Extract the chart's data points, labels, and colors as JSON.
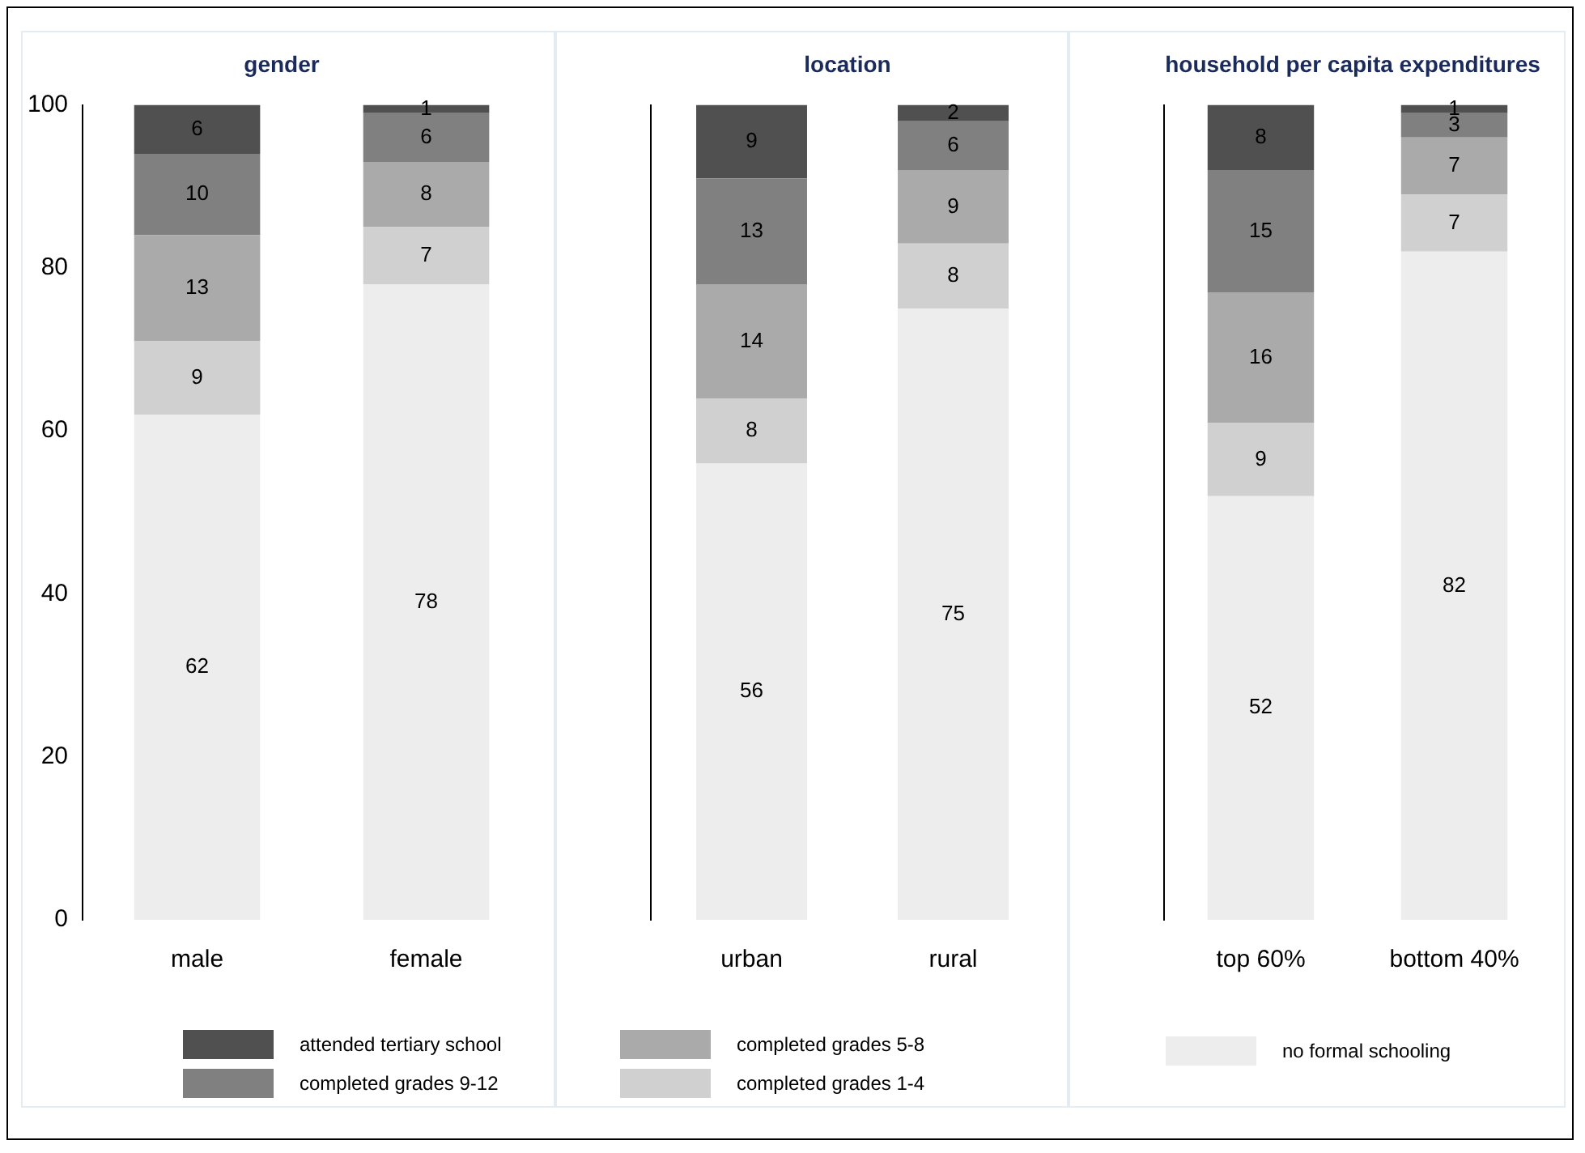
{
  "chart_data": [
    {
      "type": "bar",
      "title": "gender",
      "categories": [
        "male",
        "female"
      ],
      "stacked": true,
      "data_labels": true,
      "legend": "bottom",
      "grid": false,
      "ylim": [
        0,
        100
      ],
      "yticks": [
        0,
        20,
        40,
        60,
        80,
        100
      ],
      "series": [
        {
          "name": "no formal schooling",
          "color": "#ededed",
          "values": [
            62,
            78
          ]
        },
        {
          "name": "completed grades 1-4",
          "color": "#d0d0d0",
          "values": [
            9,
            7
          ]
        },
        {
          "name": "completed grades 5-8",
          "color": "#aaaaaa",
          "values": [
            13,
            8
          ]
        },
        {
          "name": "completed grades 9-12",
          "color": "#808080",
          "values": [
            10,
            6
          ]
        },
        {
          "name": "attended tertiary school",
          "color": "#505050",
          "values": [
            6,
            1
          ]
        }
      ]
    },
    {
      "type": "bar",
      "title": "location",
      "categories": [
        "urban",
        "rural"
      ],
      "stacked": true,
      "data_labels": true,
      "grid": false,
      "tick_labels": "x",
      "ylim": [
        0,
        100
      ],
      "yticks": [
        0,
        20,
        40,
        60,
        80,
        100
      ],
      "series": [
        {
          "color": "#ededed",
          "values": [
            56,
            75
          ]
        },
        {
          "color": "#d0d0d0",
          "values": [
            8,
            8
          ]
        },
        {
          "color": "#aaaaaa",
          "values": [
            14,
            9
          ]
        },
        {
          "color": "#808080",
          "values": [
            13,
            6
          ]
        },
        {
          "color": "#505050",
          "values": [
            9,
            2
          ]
        }
      ]
    },
    {
      "type": "bar",
      "title": "household per capita expenditures",
      "categories": [
        "top 60%",
        "bottom 40%"
      ],
      "stacked": true,
      "data_labels": true,
      "grid": false,
      "tick_labels": "x",
      "ylim": [
        0,
        100
      ],
      "yticks": [
        0,
        20,
        40,
        60,
        80,
        100
      ],
      "series": [
        {
          "color": "#ededed",
          "values": [
            52,
            82
          ]
        },
        {
          "color": "#d0d0d0",
          "values": [
            9,
            7
          ]
        },
        {
          "color": "#aaaaaa",
          "values": [
            16,
            7
          ]
        },
        {
          "color": "#808080",
          "values": [
            15,
            3
          ]
        },
        {
          "color": "#505050",
          "values": [
            8,
            1
          ]
        }
      ]
    }
  ]
}
